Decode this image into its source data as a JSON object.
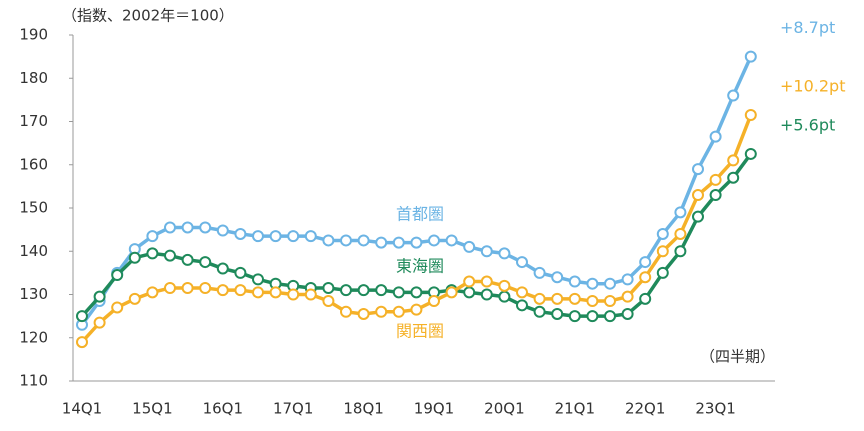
{
  "chart_data": {
    "type": "line",
    "subtitle": "（指数、2002年＝100）",
    "x_label": "（四半期）",
    "categories": [
      "14Q1",
      null,
      null,
      null,
      "15Q1",
      null,
      null,
      null,
      "16Q1",
      null,
      null,
      null,
      "17Q1",
      null,
      null,
      null,
      "18Q1",
      null,
      null,
      null,
      "19Q1",
      null,
      null,
      null,
      "20Q1",
      null,
      null,
      null,
      "21Q1",
      null,
      null,
      null,
      "22Q1",
      null,
      null,
      null,
      "23Q1",
      null,
      null
    ],
    "series": [
      {
        "name": "首都圏",
        "color": "#6cb4e4",
        "change": "+8.7pt",
        "values": [
          123,
          128.5,
          135,
          140.5,
          143.5,
          145.5,
          145.5,
          145.5,
          144.8,
          144,
          143.5,
          143.5,
          143.5,
          143.5,
          142.5,
          142.5,
          142.5,
          142,
          142,
          142,
          142.5,
          142.5,
          141,
          140,
          139.5,
          137.5,
          135,
          134,
          133,
          132.5,
          132.5,
          133.5,
          137.5,
          144,
          149,
          159,
          166.5,
          176,
          185
        ]
      },
      {
        "name": "東海圏",
        "color": "#1f8a5b",
        "change": "+5.6pt",
        "values": [
          125,
          129.5,
          134.5,
          138.5,
          139.5,
          139,
          138,
          137.5,
          136,
          135,
          133.5,
          132.5,
          132,
          131.5,
          131.5,
          131,
          131,
          131,
          130.5,
          130.5,
          130.5,
          131,
          130.5,
          130,
          129.5,
          127.5,
          126,
          125.5,
          125,
          125,
          125,
          125.5,
          129,
          135,
          140,
          148,
          153,
          157,
          162.5
        ]
      },
      {
        "name": "関西圏",
        "color": "#f5b128",
        "change": "+10.2pt",
        "values": [
          119,
          123.5,
          127,
          129,
          130.5,
          131.5,
          131.5,
          131.5,
          131,
          131,
          130.5,
          130.5,
          130,
          130,
          128.5,
          126,
          125.5,
          126,
          126,
          126.5,
          128.5,
          130.5,
          133,
          133,
          132,
          130.5,
          129,
          129,
          129,
          128.5,
          128.5,
          129.5,
          134,
          140,
          144,
          153,
          156.5,
          161,
          171.5
        ]
      }
    ],
    "ylim": [
      110,
      190
    ],
    "yticks": [
      110,
      120,
      130,
      140,
      150,
      160,
      170,
      180,
      190
    ],
    "grid": false
  }
}
